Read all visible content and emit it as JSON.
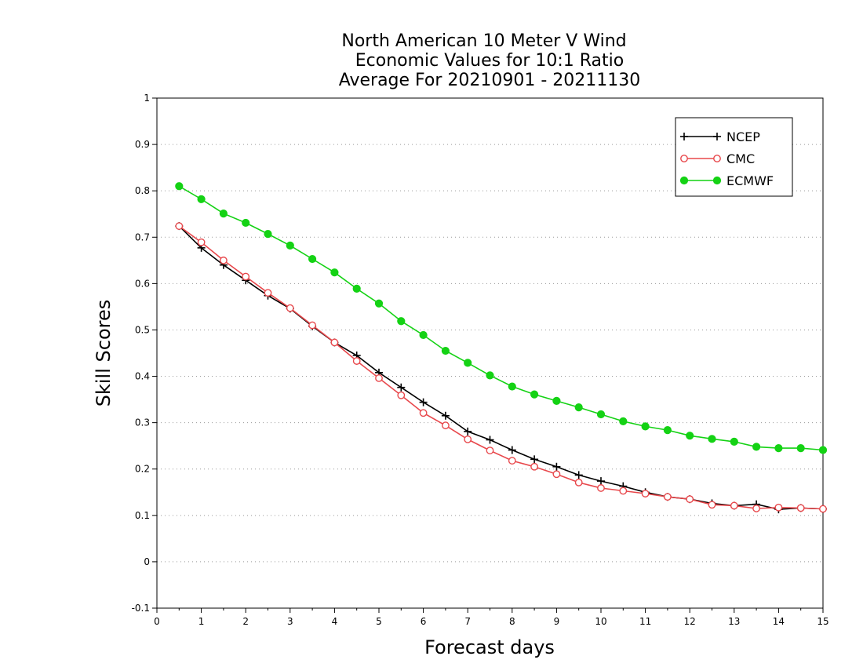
{
  "chart_data": {
    "type": "line",
    "title_lines": [
      "North American 10 Meter V Wind",
      "Economic Values for 10:1 Ratio",
      "Average For 20210901 - 20211130"
    ],
    "xlabel": "Forecast days",
    "ylabel": "Skill Scores",
    "xlim": [
      0,
      15
    ],
    "ylim": [
      -0.1,
      1
    ],
    "x_ticks": [
      "0",
      "1",
      "2",
      "3",
      "4",
      "5",
      "6",
      "7",
      "8",
      "9",
      "10",
      "11",
      "12",
      "13",
      "14",
      "15"
    ],
    "y_ticks": [
      "-0.1",
      "0",
      "0.1",
      "0.2",
      "0.3",
      "0.4",
      "0.5",
      "0.6",
      "0.7",
      "0.8",
      "0.9",
      "1"
    ],
    "grid": "horizontal dotted",
    "legend_position": "top-right",
    "x": [
      0.5,
      1,
      1.5,
      2,
      2.5,
      3,
      3.5,
      4,
      4.5,
      5,
      5.5,
      6,
      6.5,
      7,
      7.5,
      8,
      8.5,
      9,
      9.5,
      10,
      10.5,
      11,
      11.5,
      12,
      12.5,
      13,
      13.5,
      14,
      14.5,
      15
    ],
    "series": [
      {
        "name": "NCEP",
        "color": "#000000",
        "marker": "plus",
        "values": [
          0.724,
          0.677,
          0.64,
          0.607,
          0.574,
          0.546,
          0.508,
          0.473,
          0.445,
          0.408,
          0.376,
          0.344,
          0.315,
          0.281,
          0.263,
          0.241,
          0.221,
          0.205,
          0.187,
          0.174,
          0.163,
          0.15,
          0.14,
          0.135,
          0.126,
          0.121,
          0.124,
          0.113,
          0.116,
          0.114
        ]
      },
      {
        "name": "CMC",
        "color": "#e8484c",
        "marker": "open-circle",
        "values": [
          0.724,
          0.689,
          0.65,
          0.615,
          0.58,
          0.547,
          0.51,
          0.473,
          0.433,
          0.396,
          0.359,
          0.321,
          0.294,
          0.264,
          0.24,
          0.218,
          0.205,
          0.189,
          0.171,
          0.159,
          0.153,
          0.147,
          0.14,
          0.135,
          0.123,
          0.121,
          0.115,
          0.117,
          0.116,
          0.114
        ]
      },
      {
        "name": "ECMWF",
        "color": "#14d214",
        "marker": "filled-circle",
        "values": [
          0.81,
          0.782,
          0.751,
          0.731,
          0.707,
          0.682,
          0.653,
          0.624,
          0.589,
          0.557,
          0.519,
          0.489,
          0.455,
          0.429,
          0.402,
          0.378,
          0.361,
          0.347,
          0.333,
          0.318,
          0.303,
          0.292,
          0.284,
          0.272,
          0.265,
          0.259,
          0.248,
          0.245,
          0.245,
          0.241
        ]
      }
    ]
  }
}
